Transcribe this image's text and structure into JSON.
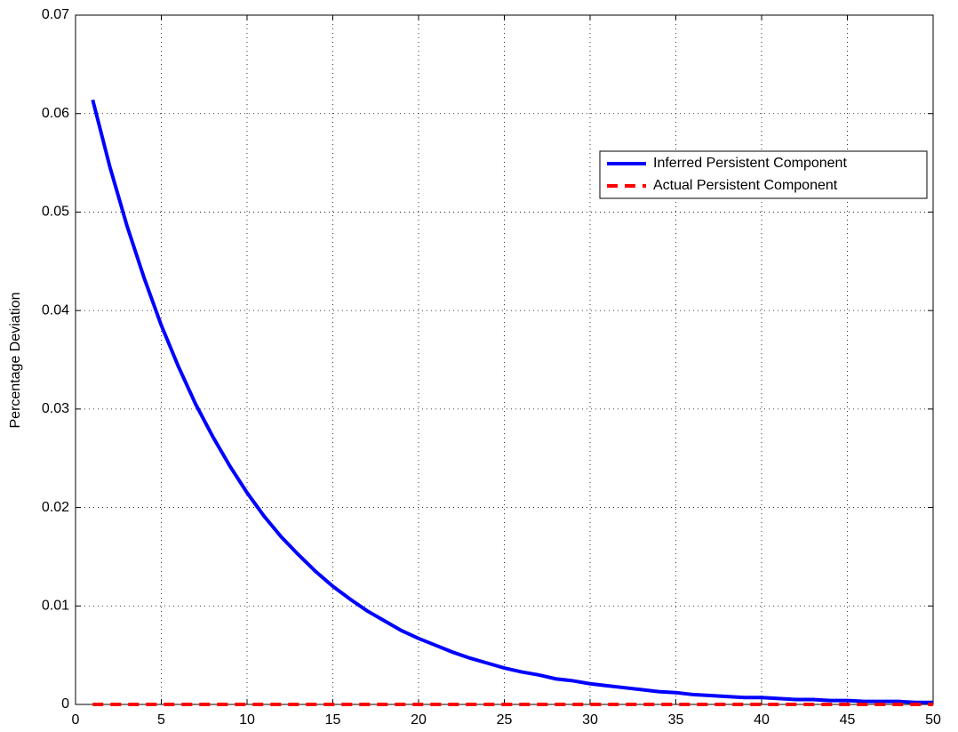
{
  "chart_data": {
    "type": "line",
    "y_label": "Percentage Deviation",
    "x": [
      1,
      2,
      3,
      4,
      5,
      6,
      7,
      8,
      9,
      10,
      11,
      12,
      13,
      14,
      15,
      16,
      17,
      18,
      19,
      20,
      21,
      22,
      23,
      24,
      25,
      26,
      27,
      28,
      29,
      30,
      31,
      32,
      33,
      34,
      35,
      36,
      37,
      38,
      39,
      40,
      41,
      42,
      43,
      44,
      45,
      46,
      47,
      48,
      49,
      50
    ],
    "series": [
      {
        "name": "Inferred Persistent Component",
        "color": "#0000ff",
        "dash": false,
        "values": [
          0.0614,
          0.0546,
          0.0486,
          0.0433,
          0.0385,
          0.0343,
          0.0305,
          0.0272,
          0.0242,
          0.0215,
          0.0191,
          0.017,
          0.0152,
          0.0135,
          0.012,
          0.0107,
          0.0095,
          0.0085,
          0.0075,
          0.0067,
          0.006,
          0.0053,
          0.0047,
          0.0042,
          0.0037,
          0.0033,
          0.003,
          0.0026,
          0.0024,
          0.0021,
          0.0019,
          0.0017,
          0.0015,
          0.0013,
          0.0012,
          0.001,
          0.0009,
          0.0008,
          0.0007,
          0.0007,
          0.0006,
          0.0005,
          0.0005,
          0.0004,
          0.0004,
          0.0003,
          0.0003,
          0.0003,
          0.0002,
          0.0002
        ]
      },
      {
        "name": "Actual Persistent Component",
        "color": "#ff0000",
        "dash": true,
        "values": [
          0,
          0,
          0,
          0,
          0,
          0,
          0,
          0,
          0,
          0,
          0,
          0,
          0,
          0,
          0,
          0,
          0,
          0,
          0,
          0,
          0,
          0,
          0,
          0,
          0,
          0,
          0,
          0,
          0,
          0,
          0,
          0,
          0,
          0,
          0,
          0,
          0,
          0,
          0,
          0,
          0,
          0,
          0,
          0,
          0,
          0,
          0,
          0,
          0,
          0
        ]
      }
    ],
    "xlim": [
      0,
      50
    ],
    "xticks": [
      0,
      5,
      10,
      15,
      20,
      25,
      30,
      35,
      40,
      45,
      50
    ],
    "ylim": [
      0,
      0.07
    ],
    "yticks": [
      0,
      0.01,
      0.02,
      0.03,
      0.04,
      0.05,
      0.06,
      0.07
    ],
    "grid": true,
    "legend": "northeast"
  }
}
